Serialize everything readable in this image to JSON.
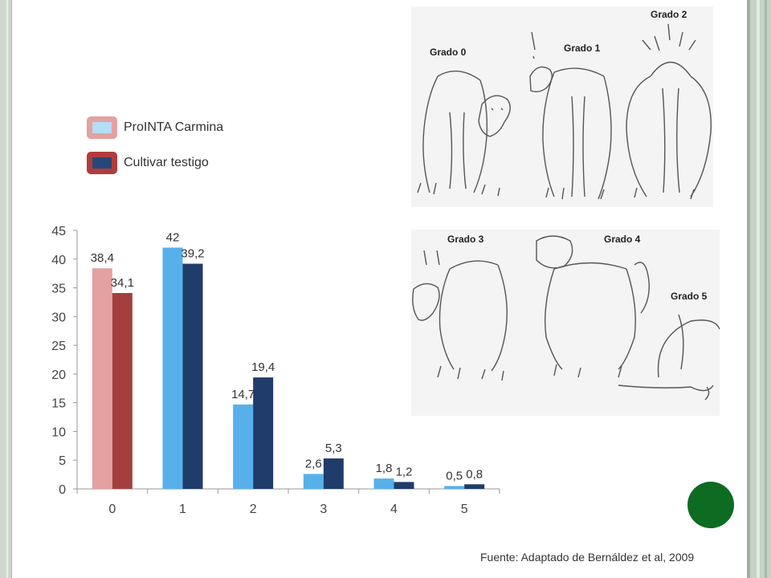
{
  "legend": {
    "items": [
      {
        "label": "ProINTA Carmina",
        "color": "#e3a1a1",
        "inner": "#b4def5"
      },
      {
        "label": "Cultivar testigo",
        "color": "#b23c3c",
        "inner": "#27477a"
      }
    ]
  },
  "chart_data": {
    "type": "bar",
    "categories": [
      "0",
      "1",
      "2",
      "3",
      "4",
      "5"
    ],
    "series": [
      {
        "values": [
          38.4,
          42,
          14.7,
          2.6,
          1.8,
          0.5
        ],
        "labels": [
          "38,4",
          "42",
          "14,7",
          "2,6",
          "1,8",
          "0,5"
        ],
        "color": "#57b0ea",
        "first_color": "#e3a1a1"
      },
      {
        "values": [
          34.1,
          39.2,
          19.4,
          5.3,
          1.2,
          0.8
        ],
        "labels": [
          "34,1",
          "39,2",
          "19,4",
          "5,3",
          "1,2",
          "0,8"
        ],
        "color": "#1f3c6a",
        "first_color": "#a33f3f"
      }
    ],
    "ylim": [
      0,
      45
    ],
    "yticks": [
      0,
      5,
      10,
      15,
      20,
      25,
      30,
      35,
      40,
      45
    ],
    "grid": false
  },
  "illustration": {
    "grades": [
      "Grado 0",
      "Grado 1",
      "Grado 2",
      "Grado 3",
      "Grado 4",
      "Grado 5"
    ]
  },
  "source": "Fuente: Adaptado de Bernáldez et al, 2009",
  "colors": {
    "accent_dot": "#0e6b22"
  }
}
